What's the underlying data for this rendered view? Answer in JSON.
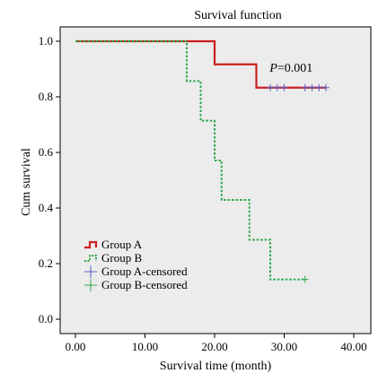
{
  "chart_data": {
    "type": "line",
    "title": "Survival function",
    "xlabel": "Survival time (month)",
    "ylabel": "Cum survival",
    "xlim": [
      0,
      40
    ],
    "ylim": [
      0,
      1
    ],
    "x_ticks": [
      "0.00",
      "10.00",
      "20.00",
      "30.00",
      "40.00"
    ],
    "y_ticks": [
      "0.0",
      "0.2",
      "0.4",
      "0.6",
      "0.8",
      "1.0"
    ],
    "annotation": "P=0.001",
    "annotation_x": 31,
    "annotation_y": 0.89,
    "plot_background": "#ececec",
    "grid": false,
    "legend_position": "bottom-left",
    "legend": [
      {
        "label": "Group A",
        "kind": "step",
        "color": "#cc1f1f",
        "dash": false
      },
      {
        "label": "Group B",
        "kind": "step",
        "color": "#2ea84a",
        "dash": true
      },
      {
        "label": "Group A-censored",
        "kind": "censor",
        "color": "#5b5bc8"
      },
      {
        "label": "Group B-censored",
        "kind": "censor",
        "color": "#2ea84a"
      }
    ],
    "series": [
      {
        "name": "Group A",
        "color": "#cc1f1f",
        "dash": false,
        "steps": [
          [
            0,
            1.0
          ],
          [
            20,
            1.0
          ],
          [
            20,
            0.917
          ],
          [
            26,
            0.917
          ],
          [
            26,
            0.833
          ],
          [
            36,
            0.833
          ]
        ],
        "censored": [
          [
            28,
            0.833
          ],
          [
            29,
            0.833
          ],
          [
            30,
            0.833
          ],
          [
            33,
            0.833
          ],
          [
            34,
            0.833
          ],
          [
            35,
            0.833
          ],
          [
            36,
            0.833
          ]
        ]
      },
      {
        "name": "Group B",
        "color": "#2ea84a",
        "dash": true,
        "steps": [
          [
            0,
            1.0
          ],
          [
            16,
            1.0
          ],
          [
            16,
            0.857
          ],
          [
            18,
            0.857
          ],
          [
            18,
            0.714
          ],
          [
            20,
            0.714
          ],
          [
            20,
            0.571
          ],
          [
            21,
            0.571
          ],
          [
            21,
            0.429
          ],
          [
            25,
            0.429
          ],
          [
            25,
            0.286
          ],
          [
            28,
            0.286
          ],
          [
            28,
            0.143
          ],
          [
            33,
            0.143
          ]
        ],
        "censored": [
          [
            33,
            0.143
          ]
        ]
      }
    ]
  }
}
